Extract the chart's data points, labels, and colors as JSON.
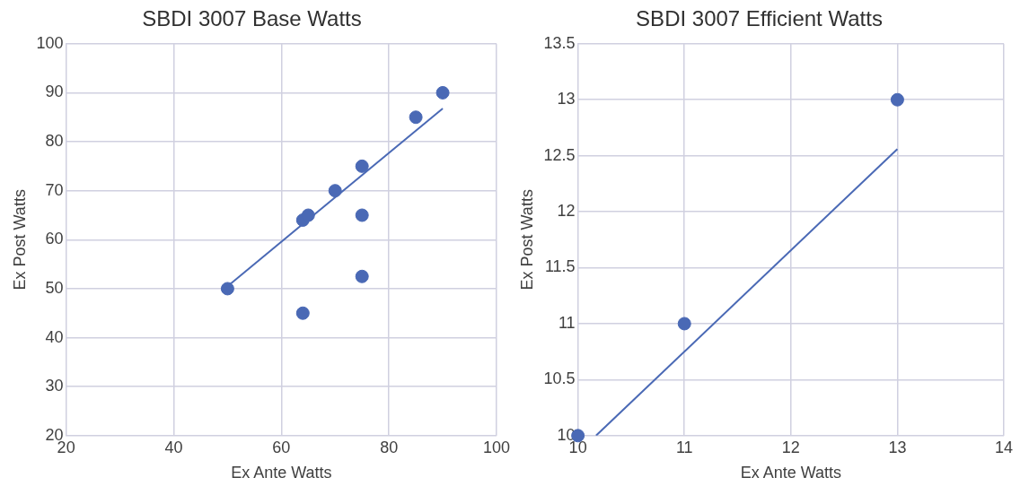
{
  "chart_data": [
    {
      "type": "scatter",
      "title": "SBDI 3007 Base Watts",
      "xlabel": "Ex Ante Watts",
      "ylabel": "Ex Post Watts",
      "xlim": [
        20,
        100
      ],
      "ylim": [
        20,
        100
      ],
      "xticks": [
        20,
        40,
        60,
        80,
        100
      ],
      "yticks": [
        20,
        30,
        40,
        50,
        60,
        70,
        80,
        90,
        100
      ],
      "grid": true,
      "series": [
        {
          "type": "scatter",
          "marker": "circle",
          "color": "#4a69b5",
          "x": [
            50,
            64,
            64,
            65,
            70,
            75,
            75,
            75,
            85,
            90
          ],
          "values": [
            50,
            45,
            64,
            65,
            70,
            75,
            65,
            52.5,
            85,
            90
          ]
        },
        {
          "type": "line",
          "marker": "none",
          "color": "#4a69b5",
          "x": [
            50,
            90
          ],
          "values": [
            50.5,
            86.8
          ]
        }
      ]
    },
    {
      "type": "scatter",
      "title": "SBDI 3007 Efficient Watts",
      "xlabel": "Ex Ante Watts",
      "ylabel": "Ex Post Watts",
      "xlim": [
        10,
        14
      ],
      "ylim": [
        10,
        13.5
      ],
      "xticks": [
        10,
        11,
        12,
        13,
        14
      ],
      "yticks": [
        10,
        10.5,
        11,
        11.5,
        12,
        12.5,
        13,
        13.5
      ],
      "grid": true,
      "series": [
        {
          "type": "scatter",
          "marker": "circle",
          "color": "#4a69b5",
          "x": [
            10,
            11,
            13
          ],
          "values": [
            10,
            11,
            13
          ]
        },
        {
          "type": "line",
          "marker": "none",
          "color": "#4a69b5",
          "x": [
            10.17,
            13
          ],
          "values": [
            10,
            12.56
          ]
        }
      ]
    }
  ]
}
